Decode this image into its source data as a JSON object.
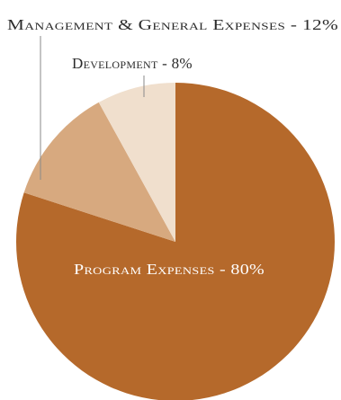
{
  "chart_data": {
    "type": "pie",
    "slices": [
      {
        "label": "Program Expenses",
        "value": 80,
        "display": "Program Expenses - 80%",
        "color": "#b5692b"
      },
      {
        "label": "Management & General Expenses",
        "value": 12,
        "display": "Management & General Expenses - 12%",
        "color": "#d7a97f"
      },
      {
        "label": "Development",
        "value": 8,
        "display": "Development - 8%",
        "color": "#f0dfcd"
      }
    ],
    "legend": "none"
  }
}
